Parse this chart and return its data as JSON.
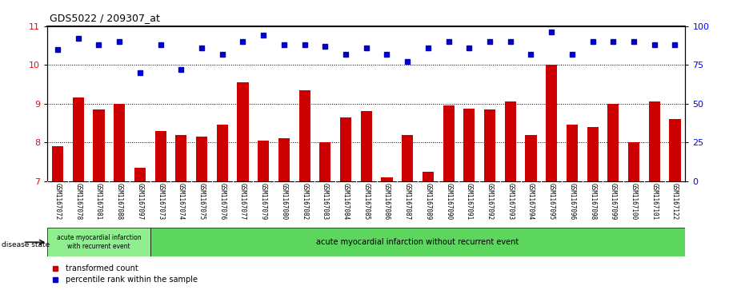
{
  "title": "GDS5022 / 209307_at",
  "samples": [
    "GSM1167072",
    "GSM1167078",
    "GSM1167081",
    "GSM1167088",
    "GSM1167097",
    "GSM1167073",
    "GSM1167074",
    "GSM1167075",
    "GSM1167076",
    "GSM1167077",
    "GSM1167079",
    "GSM1167080",
    "GSM1167082",
    "GSM1167083",
    "GSM1167084",
    "GSM1167085",
    "GSM1167086",
    "GSM1167087",
    "GSM1167089",
    "GSM1167090",
    "GSM1167091",
    "GSM1167092",
    "GSM1167093",
    "GSM1167094",
    "GSM1167095",
    "GSM1167096",
    "GSM1167098",
    "GSM1167099",
    "GSM1167100",
    "GSM1167101",
    "GSM1167122"
  ],
  "bar_values": [
    7.9,
    9.15,
    8.85,
    9.0,
    7.35,
    8.3,
    8.2,
    8.15,
    8.45,
    9.55,
    8.05,
    8.1,
    9.35,
    8.0,
    8.65,
    8.8,
    7.1,
    8.2,
    7.25,
    8.95,
    8.88,
    8.85,
    9.05,
    8.2,
    10.0,
    8.45,
    8.4,
    9.0,
    8.0,
    9.05,
    8.6
  ],
  "percentile_pct": [
    85,
    92,
    88,
    90,
    70,
    88,
    72,
    86,
    82,
    90,
    94,
    88,
    88,
    87,
    82,
    86,
    82,
    77,
    86,
    90,
    86,
    90,
    90,
    82,
    96,
    82,
    90,
    90,
    90,
    88,
    88
  ],
  "bar_color": "#cc0000",
  "percentile_color": "#0000cc",
  "ylim": [
    7,
    11
  ],
  "right_ylim": [
    0,
    100
  ],
  "yticks_left": [
    7,
    8,
    9,
    10,
    11
  ],
  "yticks_right": [
    0,
    25,
    50,
    75,
    100
  ],
  "dotted_lines": [
    8.0,
    9.0,
    10.0
  ],
  "group1_count": 5,
  "group1_label": "acute myocardial infarction\nwith recurrent event",
  "group2_label": "acute myocardial infarction without recurrent event",
  "group1_color": "#90ee90",
  "group2_color": "#5cd65c",
  "disease_state_label": "disease state",
  "legend_bar_label": "transformed count",
  "legend_pct_label": "percentile rank within the sample",
  "bar_width": 0.55,
  "marker_size": 5
}
